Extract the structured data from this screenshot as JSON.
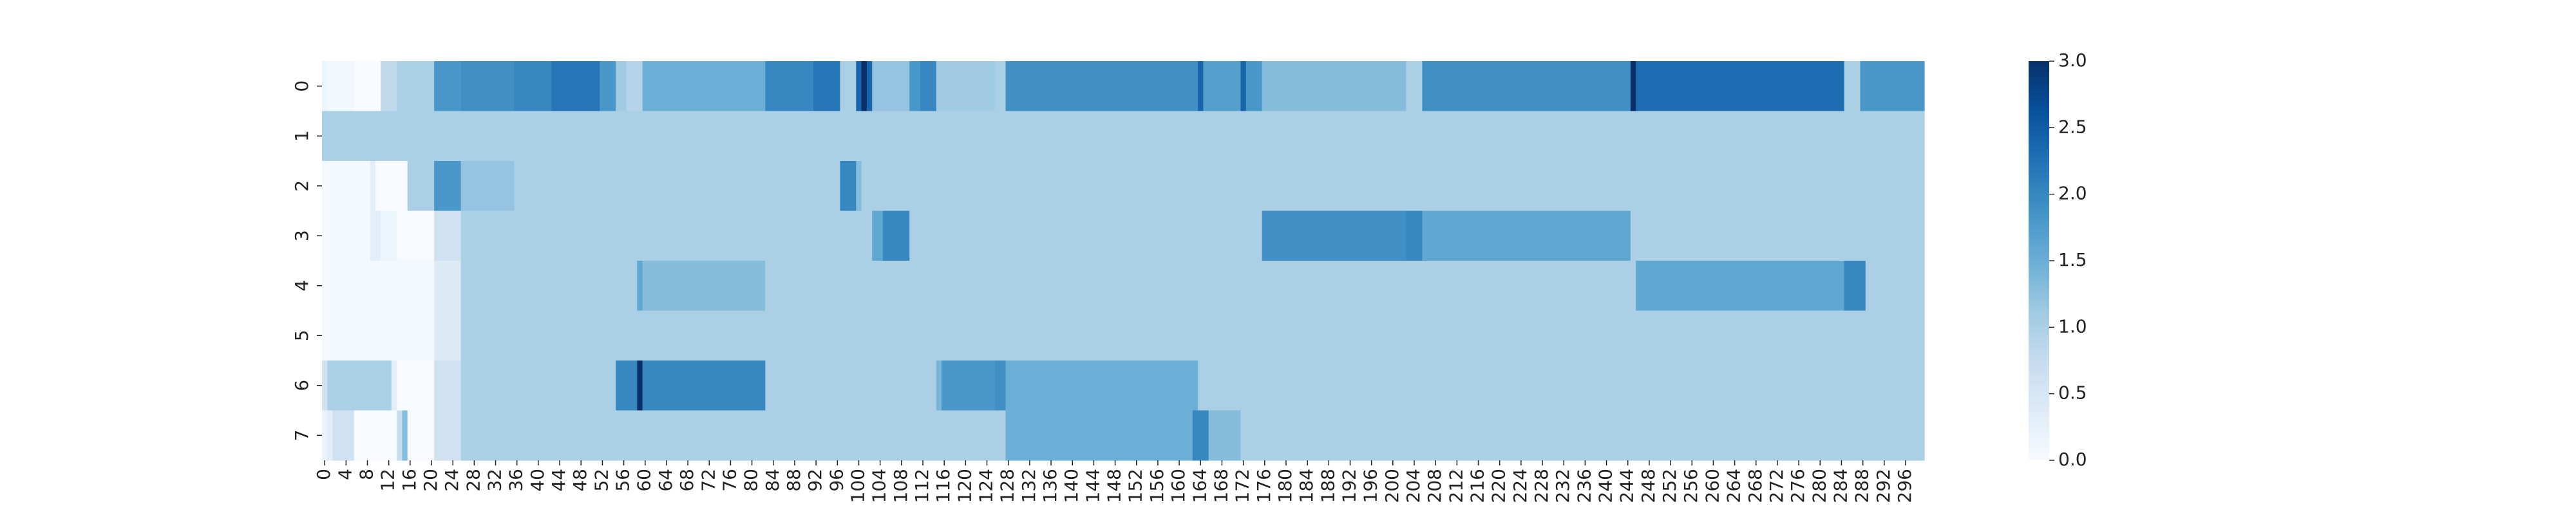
{
  "chart_data": {
    "type": "heatmap",
    "title": "",
    "xlabel": "",
    "ylabel": "",
    "colormap": "Blues",
    "vmin": 0,
    "vmax": 3,
    "x_tick_labels": [
      "0",
      "4",
      "8",
      "12",
      "16",
      "20",
      "24",
      "28",
      "32",
      "36",
      "40",
      "44",
      "48",
      "52",
      "56",
      "60",
      "64",
      "68",
      "72",
      "76",
      "80",
      "84",
      "88",
      "92",
      "96",
      "100",
      "104",
      "108",
      "112",
      "116",
      "120",
      "124",
      "128",
      "132",
      "136",
      "140",
      "144",
      "148",
      "152",
      "156",
      "160",
      "164",
      "168",
      "172",
      "176",
      "180",
      "184",
      "188",
      "192",
      "196",
      "200",
      "204",
      "208",
      "212",
      "216",
      "220",
      "224",
      "228",
      "232",
      "236",
      "240",
      "244",
      "248",
      "252",
      "256",
      "260",
      "264",
      "268",
      "272",
      "276",
      "280",
      "284",
      "288",
      "292",
      "296"
    ],
    "y_tick_labels": [
      "0",
      "1",
      "2",
      "3",
      "4",
      "5",
      "6",
      "7"
    ],
    "colorbar_ticks": [
      "0.0",
      "0.5",
      "1.0",
      "1.5",
      "2.0",
      "2.5",
      "3.0"
    ],
    "n_columns": 300,
    "rows": [
      {
        "row": 0,
        "segments": [
          [
            0,
            1,
            0.15
          ],
          [
            1,
            6,
            0.1
          ],
          [
            6,
            11,
            0
          ],
          [
            11,
            14,
            0.8
          ],
          [
            14,
            21,
            1.0
          ],
          [
            21,
            26,
            1.8
          ],
          [
            26,
            36,
            1.9
          ],
          [
            36,
            43,
            2.0
          ],
          [
            43,
            52,
            2.2
          ],
          [
            52,
            55,
            1.8
          ],
          [
            55,
            57,
            1.1
          ],
          [
            57,
            60,
            0.9
          ],
          [
            60,
            83,
            1.5
          ],
          [
            83,
            92,
            2.0
          ],
          [
            92,
            97,
            2.2
          ],
          [
            97,
            100,
            1.0
          ],
          [
            100,
            101,
            2.4
          ],
          [
            101,
            102,
            3.0
          ],
          [
            102,
            103,
            2.4
          ],
          [
            103,
            110,
            1.2
          ],
          [
            110,
            112,
            1.8
          ],
          [
            112,
            115,
            2.0
          ],
          [
            115,
            126,
            1.1
          ],
          [
            126,
            128,
            1.0
          ],
          [
            128,
            164,
            1.9
          ],
          [
            164,
            165,
            2.4
          ],
          [
            165,
            172,
            1.7
          ],
          [
            172,
            173,
            2.4
          ],
          [
            173,
            176,
            1.8
          ],
          [
            176,
            203,
            1.3
          ],
          [
            203,
            206,
            1.0
          ],
          [
            206,
            245,
            1.9
          ],
          [
            245,
            246,
            3.0
          ],
          [
            246,
            285,
            2.3
          ],
          [
            285,
            288,
            1.0
          ],
          [
            288,
            300,
            1.8
          ]
        ]
      },
      {
        "row": 1,
        "segments": [
          [
            0,
            300,
            1.0
          ]
        ]
      },
      {
        "row": 2,
        "segments": [
          [
            0,
            9,
            0.05
          ],
          [
            9,
            10,
            0.3
          ],
          [
            10,
            16,
            0
          ],
          [
            16,
            21,
            1.0
          ],
          [
            21,
            26,
            1.8
          ],
          [
            26,
            36,
            1.2
          ],
          [
            36,
            97,
            1.0
          ],
          [
            97,
            100,
            2.0
          ],
          [
            100,
            101,
            1.3
          ],
          [
            101,
            300,
            1.0
          ]
        ]
      },
      {
        "row": 3,
        "segments": [
          [
            0,
            9,
            0.05
          ],
          [
            9,
            11,
            0.3
          ],
          [
            11,
            14,
            0.15
          ],
          [
            14,
            21,
            0
          ],
          [
            21,
            26,
            0.6
          ],
          [
            26,
            103,
            1.0
          ],
          [
            103,
            105,
            1.6
          ],
          [
            105,
            110,
            2.0
          ],
          [
            110,
            176,
            1.0
          ],
          [
            176,
            203,
            1.9
          ],
          [
            203,
            206,
            2.0
          ],
          [
            206,
            245,
            1.6
          ],
          [
            245,
            300,
            1.0
          ]
        ]
      },
      {
        "row": 4,
        "segments": [
          [
            0,
            21,
            0.05
          ],
          [
            21,
            26,
            0.4
          ],
          [
            26,
            59,
            1.0
          ],
          [
            59,
            60,
            1.6
          ],
          [
            60,
            83,
            1.3
          ],
          [
            83,
            246,
            1.0
          ],
          [
            246,
            285,
            1.6
          ],
          [
            285,
            289,
            2.0
          ],
          [
            289,
            300,
            1.0
          ]
        ]
      },
      {
        "row": 5,
        "segments": [
          [
            0,
            21,
            0.05
          ],
          [
            21,
            26,
            0.4
          ],
          [
            26,
            300,
            1.0
          ]
        ]
      },
      {
        "row": 6,
        "segments": [
          [
            0,
            1,
            0.6
          ],
          [
            1,
            13,
            1.0
          ],
          [
            13,
            14,
            0.3
          ],
          [
            14,
            21,
            0
          ],
          [
            21,
            26,
            0.6
          ],
          [
            26,
            55,
            1.0
          ],
          [
            55,
            59,
            2.0
          ],
          [
            59,
            60,
            3.0
          ],
          [
            60,
            83,
            2.0
          ],
          [
            83,
            115,
            1.0
          ],
          [
            115,
            116,
            1.4
          ],
          [
            116,
            126,
            1.8
          ],
          [
            126,
            128,
            1.9
          ],
          [
            128,
            164,
            1.5
          ],
          [
            164,
            300,
            1.0
          ]
        ]
      },
      {
        "row": 7,
        "segments": [
          [
            0,
            1,
            0.2
          ],
          [
            1,
            2,
            0.3
          ],
          [
            2,
            6,
            0.6
          ],
          [
            6,
            14,
            0
          ],
          [
            14,
            15,
            0.7
          ],
          [
            15,
            16,
            1.3
          ],
          [
            16,
            21,
            0
          ],
          [
            21,
            26,
            0.6
          ],
          [
            26,
            128,
            1.0
          ],
          [
            128,
            163,
            1.5
          ],
          [
            163,
            166,
            2.0
          ],
          [
            166,
            172,
            1.3
          ],
          [
            172,
            300,
            1.0
          ]
        ]
      }
    ]
  }
}
